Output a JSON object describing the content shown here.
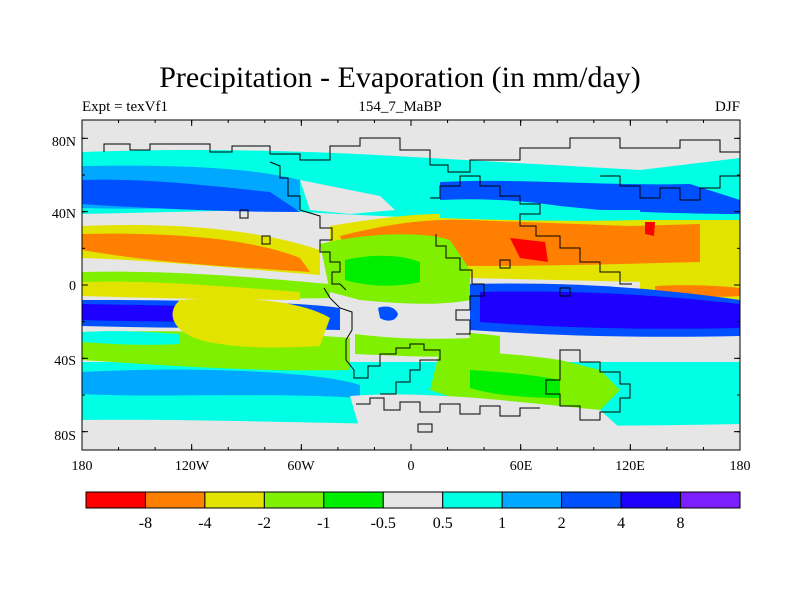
{
  "title": "Precipitation - Evaporation (in mm/day)",
  "subtitle_left": "Expt = texVf1",
  "subtitle_center": "154_7_MaBP",
  "subtitle_right": "DJF",
  "map": {
    "lon_range": [
      -180,
      180
    ],
    "lat_range": [
      -90,
      90
    ],
    "x_tick_labels": [
      "180",
      "120W",
      "60W",
      "0",
      "60E",
      "120E",
      "180"
    ],
    "y_tick_labels": [
      "80N",
      "40N",
      "0",
      "40S",
      "80S"
    ],
    "ocean_color": "#e6e6e6"
  },
  "colorbar": {
    "colors": [
      "#ff0000",
      "#ff7f00",
      "#e3e300",
      "#7ff000",
      "#00ee00",
      "#e6e6e6",
      "#00ffe4",
      "#00a8ff",
      "#0050ff",
      "#1e00ff",
      "#7b1fff"
    ],
    "labels": [
      "-8",
      "-4",
      "-2",
      "-1",
      "-0.5",
      "0.5",
      "1",
      "2",
      "4",
      "8"
    ]
  }
}
